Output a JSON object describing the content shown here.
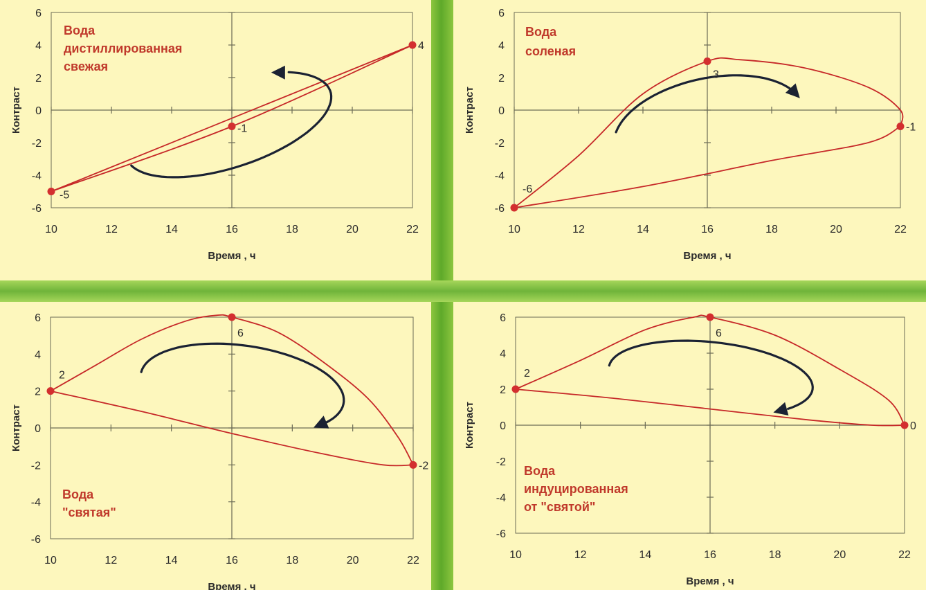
{
  "chart_data": [
    {
      "type": "line",
      "title": [
        "Вода",
        "дистиллированная",
        "свежая"
      ],
      "xlabel": "Время , ч",
      "ylabel": "Контраст",
      "xlim": [
        10,
        22
      ],
      "ylim": [
        -6,
        6
      ],
      "xticks": [
        10,
        12,
        14,
        16,
        18,
        20,
        22
      ],
      "yticks": [
        -6,
        -4,
        -2,
        0,
        2,
        4,
        6
      ],
      "points": [
        {
          "x": 10,
          "y": -5,
          "label": "-5"
        },
        {
          "x": 16,
          "y": -1,
          "label": "-1"
        },
        {
          "x": 22,
          "y": 4,
          "label": "4"
        }
      ],
      "series": [
        {
          "values": [
            [
              10,
              -5
            ],
            [
              16,
              -1
            ],
            [
              22,
              4
            ]
          ]
        },
        {
          "values": [
            [
              22,
              4
            ],
            [
              10,
              -5
            ]
          ]
        }
      ],
      "arrow": "counterclockwise",
      "color": "#c62828"
    },
    {
      "type": "line",
      "title": [
        "Вода",
        "соленая"
      ],
      "xlabel": "Время , ч",
      "ylabel": "Контраст",
      "xlim": [
        10,
        22
      ],
      "ylim": [
        -6,
        6
      ],
      "xticks": [
        10,
        12,
        14,
        16,
        18,
        20,
        22
      ],
      "yticks": [
        -6,
        -4,
        -2,
        0,
        2,
        4,
        6
      ],
      "points": [
        {
          "x": 10,
          "y": -6,
          "label": "-6"
        },
        {
          "x": 16,
          "y": 3,
          "label": "3"
        },
        {
          "x": 22,
          "y": -1,
          "label": "-1"
        }
      ],
      "series": [
        {
          "values": [
            [
              10,
              -6
            ],
            [
              12,
              -2.8
            ],
            [
              14,
              1
            ],
            [
              16,
              3
            ],
            [
              17,
              3.1
            ],
            [
              19,
              2.6
            ],
            [
              21,
              1.4
            ],
            [
              22,
              0
            ],
            [
              22,
              -1
            ]
          ]
        },
        {
          "values": [
            [
              22,
              -1
            ],
            [
              21,
              -2
            ],
            [
              18,
              -3.1
            ],
            [
              14,
              -4.7
            ],
            [
              10,
              -6
            ]
          ]
        }
      ],
      "arrow": "clockwise",
      "color": "#c62828"
    },
    {
      "type": "line",
      "title": [
        "Вода",
        "\"святая\""
      ],
      "xlabel": "Время , ч",
      "ylabel": "Контраст",
      "xlim": [
        10,
        22
      ],
      "ylim": [
        -6,
        6
      ],
      "xticks": [
        10,
        12,
        14,
        16,
        18,
        20,
        22
      ],
      "yticks": [
        -6,
        -4,
        -2,
        0,
        2,
        4,
        6
      ],
      "points": [
        {
          "x": 10,
          "y": 2,
          "label": "2"
        },
        {
          "x": 16,
          "y": 6,
          "label": "6"
        },
        {
          "x": 22,
          "y": -2,
          "label": "-2"
        }
      ],
      "series": [
        {
          "values": [
            [
              10,
              2
            ],
            [
              11.5,
              3.4
            ],
            [
              13,
              4.8
            ],
            [
              14.5,
              5.8
            ],
            [
              15.5,
              6.1
            ],
            [
              16,
              6
            ],
            [
              17.5,
              5.2
            ],
            [
              19,
              3.6
            ],
            [
              20.5,
              1.6
            ],
            [
              21.5,
              -0.5
            ],
            [
              22,
              -2
            ]
          ]
        },
        {
          "values": [
            [
              22,
              -2
            ],
            [
              21,
              -2
            ],
            [
              19,
              -1.4
            ],
            [
              16,
              -0.3
            ],
            [
              13,
              0.9
            ],
            [
              10,
              2
            ]
          ]
        }
      ],
      "arrow": "clockwise",
      "color": "#c62828"
    },
    {
      "type": "line",
      "title": [
        "Вода",
        "индуцированная",
        "от \"святой\""
      ],
      "xlabel": "Время , ч",
      "ylabel": "Контраст",
      "xlim": [
        10,
        22
      ],
      "ylim": [
        -6,
        6
      ],
      "xticks": [
        10,
        12,
        14,
        16,
        18,
        20,
        22
      ],
      "yticks": [
        -6,
        -4,
        -2,
        0,
        2,
        4,
        6
      ],
      "points": [
        {
          "x": 10,
          "y": 2,
          "label": "2"
        },
        {
          "x": 16,
          "y": 6,
          "label": "6"
        },
        {
          "x": 22,
          "y": 0,
          "label": "0"
        }
      ],
      "series": [
        {
          "values": [
            [
              10,
              2
            ],
            [
              12,
              3.6
            ],
            [
              14,
              5.3
            ],
            [
              15.5,
              6
            ],
            [
              16,
              6
            ],
            [
              18,
              5
            ],
            [
              20,
              3.1
            ],
            [
              21.5,
              1.4
            ],
            [
              22,
              0
            ]
          ]
        },
        {
          "values": [
            [
              22,
              0
            ],
            [
              21,
              0
            ],
            [
              19,
              0.3
            ],
            [
              16,
              0.9
            ],
            [
              13,
              1.5
            ],
            [
              10,
              2
            ]
          ]
        }
      ],
      "arrow": "clockwise",
      "color": "#c62828"
    }
  ]
}
